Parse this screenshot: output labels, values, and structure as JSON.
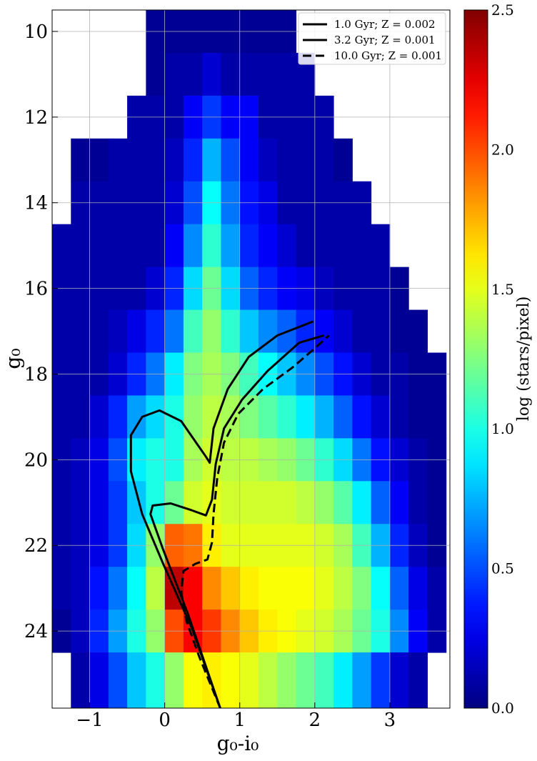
{
  "chart_data": {
    "type": "hess",
    "xlabel": "g₀-i₀",
    "ylabel": "g₀",
    "xlim": [
      -1.5,
      3.8
    ],
    "ylim": [
      9.5,
      25.8
    ],
    "y_inverted": true,
    "xticks": [
      {
        "value": -1,
        "label": "−1"
      },
      0,
      1,
      2,
      3
    ],
    "yticks": [
      10,
      12,
      14,
      16,
      18,
      20,
      22,
      24
    ],
    "grid": true,
    "colormap": "jet",
    "colorbar": {
      "label": "log (stars/pixel)",
      "lim": [
        0,
        2.5
      ],
      "ticks": [
        {
          "value": 0,
          "label": "0.0"
        },
        0.5,
        {
          "value": 1,
          "label": "1.0"
        },
        1.5,
        {
          "value": 2,
          "label": "2.0"
        },
        2.5
      ]
    },
    "xbins": [
      -1.5,
      -1.25,
      -1,
      -0.75,
      -0.5,
      -0.25,
      0,
      0.25,
      0.5,
      0.75,
      1,
      1.25,
      1.5,
      1.75,
      2,
      2.25,
      2.5,
      2.75,
      3,
      3.25,
      3.5,
      3.75
    ],
    "ybins": [
      9.5,
      10.5,
      11.5,
      12.5,
      13.5,
      14.5,
      15.5,
      16.5,
      17.5,
      18.5,
      19.5,
      20.5,
      21.5,
      22.5,
      23.5,
      24.5,
      25.8
    ],
    "z": [
      [
        null,
        null,
        null,
        null,
        null,
        0.05,
        0.05,
        0.05,
        0.05,
        0.05,
        0.05,
        0.05,
        0.05,
        null,
        null,
        null,
        null,
        null,
        null,
        null,
        null
      ],
      [
        null,
        null,
        null,
        null,
        null,
        0.05,
        0.1,
        0.1,
        0.2,
        0.1,
        0.1,
        0.1,
        0.1,
        0.1,
        null,
        null,
        null,
        null,
        null,
        null,
        null
      ],
      [
        null,
        null,
        null,
        null,
        0.1,
        0.1,
        0.1,
        0.3,
        0.45,
        0.3,
        0.3,
        0.1,
        0.1,
        0.1,
        0.1,
        null,
        null,
        null,
        null,
        null,
        null
      ],
      [
        null,
        0.05,
        0.05,
        0.1,
        0.1,
        0.1,
        0.15,
        0.4,
        0.75,
        0.5,
        0.3,
        0.15,
        0.1,
        0.1,
        0.1,
        0.05,
        null,
        null,
        null,
        null,
        null
      ],
      [
        null,
        0.1,
        0.1,
        0.1,
        0.1,
        0.1,
        0.2,
        0.5,
        0.95,
        0.6,
        0.35,
        0.25,
        0.1,
        0.1,
        0.1,
        0.1,
        0.1,
        null,
        null,
        null,
        null
      ],
      [
        0.1,
        0.1,
        0.1,
        0.1,
        0.1,
        0.1,
        0.3,
        0.65,
        1.05,
        0.7,
        0.4,
        0.3,
        0.2,
        0.1,
        0.1,
        0.1,
        0.1,
        0.1,
        null,
        null,
        null
      ],
      [
        0.1,
        0.1,
        0.1,
        0.1,
        0.1,
        0.2,
        0.4,
        0.85,
        1.2,
        0.85,
        0.55,
        0.4,
        0.3,
        0.25,
        0.15,
        0.1,
        0.1,
        0.1,
        0.05,
        null,
        null
      ],
      [
        0.1,
        0.1,
        0.1,
        0.15,
        0.25,
        0.4,
        0.6,
        1.1,
        1.3,
        1.05,
        0.8,
        0.65,
        0.55,
        0.4,
        0.3,
        0.2,
        0.1,
        0.1,
        0.05,
        0.05,
        null
      ],
      [
        0.1,
        0.1,
        0.1,
        0.2,
        0.4,
        0.6,
        0.9,
        1.25,
        1.35,
        1.25,
        1.1,
        0.95,
        0.8,
        0.65,
        0.5,
        0.35,
        0.2,
        0.1,
        0.1,
        0.05,
        0.05
      ],
      [
        0.1,
        0.1,
        0.2,
        0.4,
        0.7,
        0.85,
        1.0,
        1.3,
        1.4,
        1.35,
        1.25,
        1.15,
        1.05,
        0.9,
        0.75,
        0.55,
        0.35,
        0.2,
        0.1,
        0.05,
        0.05
      ],
      [
        0.1,
        0.15,
        0.25,
        0.5,
        0.9,
        1.0,
        1.0,
        1.35,
        1.45,
        1.4,
        1.4,
        1.35,
        1.3,
        1.2,
        1.05,
        0.85,
        0.6,
        0.35,
        0.2,
        0.1,
        0.05
      ],
      [
        0.1,
        0.15,
        0.25,
        0.45,
        0.8,
        1.0,
        1.2,
        1.45,
        1.5,
        1.45,
        1.45,
        1.45,
        1.45,
        1.4,
        1.3,
        1.15,
        0.9,
        0.55,
        0.3,
        0.1,
        0.05
      ],
      [
        0.1,
        0.15,
        0.25,
        0.45,
        0.85,
        1.3,
        1.95,
        1.9,
        1.6,
        1.5,
        1.5,
        1.5,
        1.5,
        1.5,
        1.45,
        1.35,
        1.1,
        0.75,
        0.4,
        0.15,
        0.05
      ],
      [
        0.1,
        0.15,
        0.35,
        0.6,
        0.95,
        1.4,
        2.35,
        2.2,
        1.85,
        1.7,
        1.6,
        1.55,
        1.55,
        1.55,
        1.5,
        1.4,
        1.25,
        0.95,
        0.55,
        0.25,
        0.1
      ],
      [
        0.05,
        0.15,
        0.4,
        0.7,
        1.0,
        1.3,
        2.0,
        2.2,
        2.05,
        1.85,
        1.7,
        1.6,
        1.55,
        1.5,
        1.45,
        1.35,
        1.2,
        1.0,
        0.65,
        0.3,
        0.1
      ],
      [
        null,
        0.1,
        0.25,
        0.5,
        0.8,
        1.0,
        1.3,
        1.55,
        1.6,
        1.55,
        1.5,
        1.4,
        1.3,
        1.2,
        1.1,
        0.9,
        0.7,
        0.45,
        0.2,
        0.1,
        null
      ]
    ],
    "legend_loc": "upper right",
    "series": [
      {
        "name": "1.0 Gyr; Z = 0.002",
        "color": "#000000",
        "dash": "solid",
        "x": [
          0.74,
          0.36,
          -0.02,
          -0.3,
          -0.45,
          -0.45,
          -0.3,
          -0.07,
          0.22,
          0.55,
          0.6,
          0.65,
          0.84,
          1.12,
          1.5,
          1.98
        ],
        "y": [
          25.8,
          23.93,
          22.43,
          21.27,
          20.27,
          19.43,
          19.0,
          18.85,
          19.1,
          19.93,
          20.07,
          19.27,
          18.35,
          17.6,
          17.1,
          16.77
        ]
      },
      {
        "name": "3.2 Gyr; Z = 0.001",
        "color": "#000000",
        "dash": "solid",
        "x": [
          0.74,
          0.31,
          -0.02,
          -0.19,
          -0.16,
          0.08,
          0.36,
          0.55,
          0.63,
          0.68,
          0.79,
          1.03,
          1.37,
          1.79,
          2.12
        ],
        "y": [
          25.8,
          23.6,
          22.1,
          21.27,
          21.07,
          21.02,
          21.18,
          21.3,
          20.93,
          20.1,
          19.27,
          18.6,
          17.93,
          17.27,
          17.1
        ]
      },
      {
        "name": "10.0 Gyr; Z = 0.001",
        "color": "#000000",
        "dash": "dashed",
        "x": [
          0.74,
          0.46,
          0.29,
          0.22,
          0.25,
          0.41,
          0.57,
          0.63,
          0.65,
          0.7,
          0.79,
          0.98,
          1.31,
          1.7,
          1.98,
          2.19
        ],
        "y": [
          25.8,
          24.6,
          23.77,
          23.1,
          22.6,
          22.43,
          22.33,
          21.93,
          21.27,
          20.43,
          19.6,
          18.93,
          18.35,
          17.85,
          17.43,
          17.1
        ]
      }
    ]
  }
}
